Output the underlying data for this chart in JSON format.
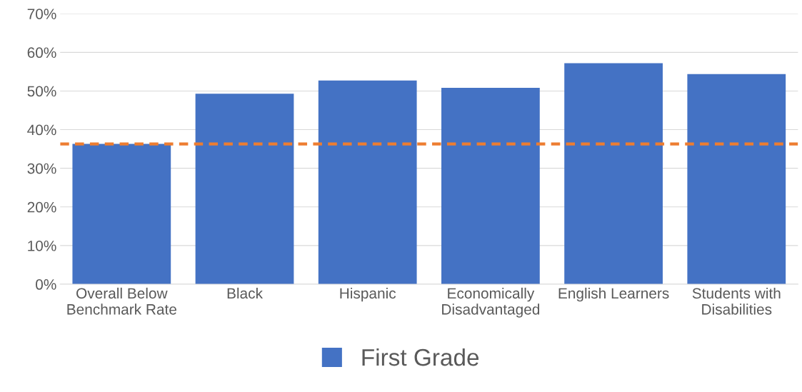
{
  "chart_data": {
    "type": "bar",
    "categories": [
      "Overall Below\nBenchmark Rate",
      "Black",
      "Hispanic",
      "Economically\nDisadvantaged",
      "English Learners",
      "Students with\nDisabilities"
    ],
    "series": [
      {
        "name": "First Grade",
        "color": "#4472c4",
        "values": [
          36.3,
          49.3,
          52.7,
          50.8,
          57.2,
          54.4
        ]
      }
    ],
    "ylim": [
      0,
      70
    ],
    "yticks": [
      {
        "value": 0,
        "label": "0%"
      },
      {
        "value": 10,
        "label": "10%"
      },
      {
        "value": 20,
        "label": "20%"
      },
      {
        "value": 30,
        "label": "30%"
      },
      {
        "value": 40,
        "label": "40%"
      },
      {
        "value": 50,
        "label": "50%"
      },
      {
        "value": 60,
        "label": "60%"
      },
      {
        "value": 70,
        "label": "70%"
      }
    ],
    "grid": "y",
    "legend": "bottom",
    "ref_lines": [
      {
        "axis": "y",
        "value": 36.3,
        "color": "#ed7d31",
        "line_style": "dashed"
      }
    ]
  }
}
